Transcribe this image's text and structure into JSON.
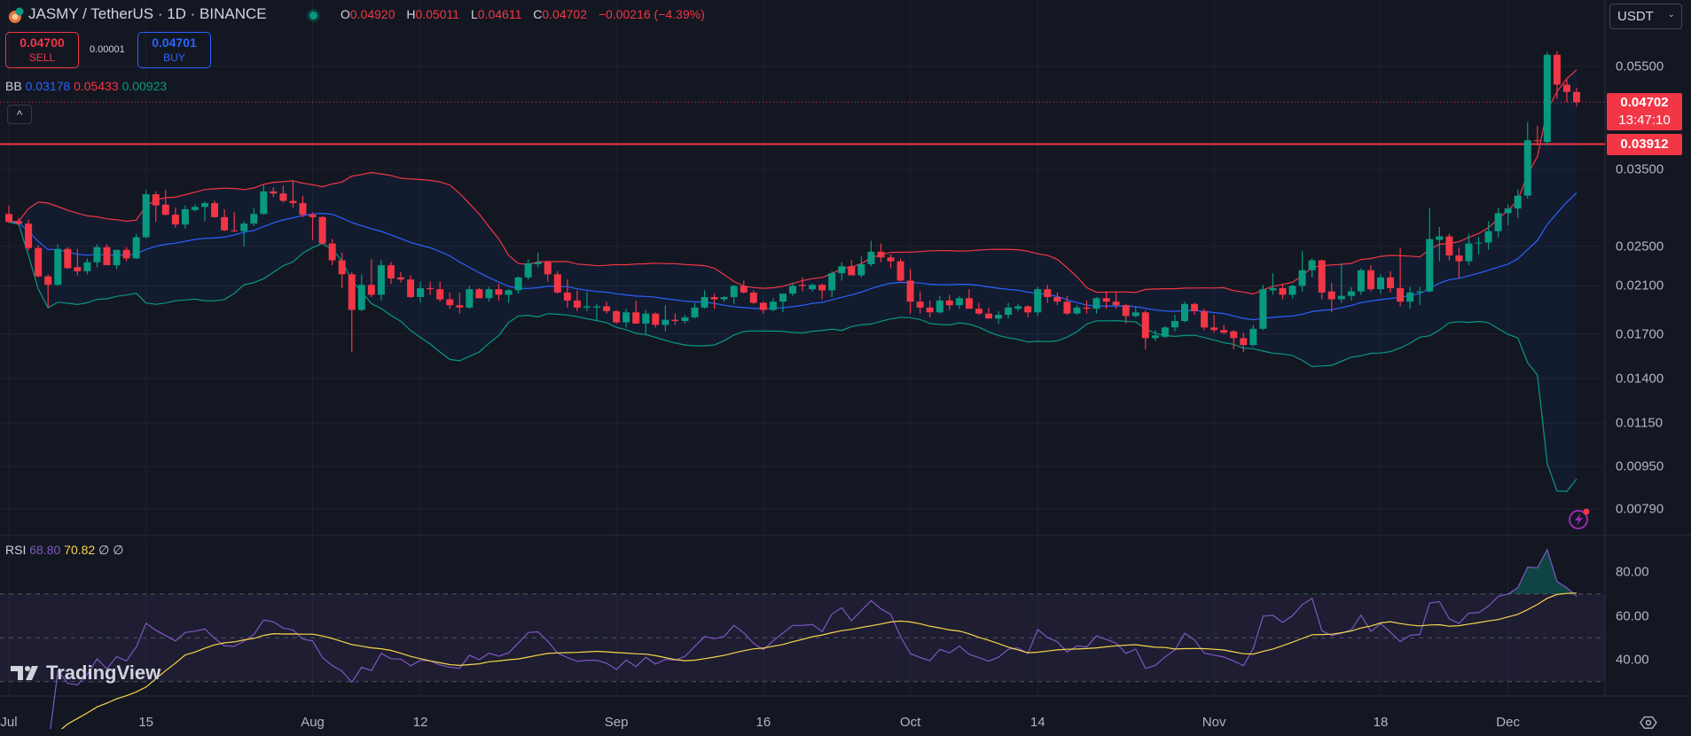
{
  "header": {
    "symbol_title": "JASMY / TetherUS · 1D · BINANCE",
    "ohlc": [
      {
        "key": "O",
        "value": "0.04920"
      },
      {
        "key": "H",
        "value": "0.05011"
      },
      {
        "key": "L",
        "value": "0.04611"
      },
      {
        "key": "C",
        "value": "0.04702"
      }
    ],
    "change": "−0.00216 (−4.39%)",
    "status_color": "#089981"
  },
  "trade": {
    "sell_price": "0.04700",
    "sell_label": "SELL",
    "spread": "0.00001",
    "buy_price": "0.04701",
    "buy_label": "BUY"
  },
  "indicators": {
    "bb": {
      "label": "BB",
      "basis": "0.03178",
      "upper": "0.05433",
      "lower": "0.00923"
    },
    "rsi": {
      "label": "RSI",
      "value": "68.80",
      "ma": "70.82",
      "extra1": "∅",
      "extra2": "∅"
    }
  },
  "collapse_icon": "^",
  "currency": "USDT",
  "price_labels": {
    "last": "0.04702",
    "countdown": "13:47:10",
    "line": "0.03912"
  },
  "branding": "TradingView",
  "colors": {
    "up": "#089981",
    "down": "#f23645",
    "bb_basis": "#2962ff",
    "bb_upper": "#f23645",
    "bb_lower": "#089981",
    "rsi": "#7e57c2",
    "rsi_ma": "#f7d54a"
  },
  "chart_data": {
    "type": "candlestick",
    "title": "JASMY / TetherUS · 1D · BINANCE",
    "y_scale": "log",
    "ylim": [
      0.0072,
      0.062
    ],
    "grid": true,
    "y_ticks": [
      "0.05500",
      "0.03500",
      "0.02500",
      "0.02100",
      "0.01700",
      "0.01400",
      "0.01150",
      "0.00950",
      "0.00790"
    ],
    "x_ticks": [
      {
        "label": "Jul",
        "x": "Jul 1"
      },
      {
        "label": "15",
        "x": "Jul 15"
      },
      {
        "label": "Aug",
        "x": "Aug 1"
      },
      {
        "label": "12",
        "x": "Aug 12"
      },
      {
        "label": "Sep",
        "x": "Sep 1"
      },
      {
        "label": "16",
        "x": "Sep 16"
      },
      {
        "label": "Oct",
        "x": "Oct 1"
      },
      {
        "label": "14",
        "x": "Oct 14"
      },
      {
        "label": "Nov",
        "x": "Nov 1"
      },
      {
        "label": "18",
        "x": "Nov 18"
      },
      {
        "label": "Dec",
        "x": "Dec 1"
      }
    ],
    "horizontal_line": 0.03912,
    "last_price": 0.04702,
    "bollinger": {
      "length": 20,
      "mult": 2
    },
    "rsi_panel": {
      "length": 14,
      "ma_length": 14,
      "ticks": [
        "80.00",
        "60.00",
        "40.00"
      ],
      "bands": [
        70,
        50,
        30
      ]
    },
    "candles_format": [
      "date",
      "open",
      "high",
      "low",
      "close"
    ],
    "candles": [
      [
        "Jul 1",
        0.0288,
        0.0299,
        0.0277,
        0.0278
      ],
      [
        "Jul 2",
        0.0279,
        0.0283,
        0.0274,
        0.0276
      ],
      [
        "Jul 3",
        0.0276,
        0.0281,
        0.0245,
        0.0248
      ],
      [
        "Jul 4",
        0.0248,
        0.0251,
        0.0218,
        0.0219
      ],
      [
        "Jul 5",
        0.0219,
        0.0221,
        0.0191,
        0.0211
      ],
      [
        "Jul 6",
        0.0211,
        0.0252,
        0.021,
        0.0247
      ],
      [
        "Jul 7",
        0.0247,
        0.0249,
        0.0226,
        0.0227
      ],
      [
        "Jul 8",
        0.0228,
        0.0247,
        0.022,
        0.0224
      ],
      [
        "Jul 9",
        0.0224,
        0.0237,
        0.0221,
        0.0233
      ],
      [
        "Jul 10",
        0.0233,
        0.0252,
        0.0228,
        0.0249
      ],
      [
        "Jul 11",
        0.0249,
        0.0252,
        0.023,
        0.023
      ],
      [
        "Jul 12",
        0.023,
        0.0246,
        0.0226,
        0.0246
      ],
      [
        "Jul 13",
        0.0246,
        0.0249,
        0.0234,
        0.0237
      ],
      [
        "Jul 14",
        0.0237,
        0.0264,
        0.0236,
        0.026
      ],
      [
        "Jul 15",
        0.026,
        0.032,
        0.0259,
        0.0314
      ],
      [
        "Jul 16",
        0.0314,
        0.0318,
        0.0278,
        0.0299
      ],
      [
        "Jul 17",
        0.03,
        0.032,
        0.0286,
        0.0287
      ],
      [
        "Jul 18",
        0.0287,
        0.0296,
        0.0271,
        0.0275
      ],
      [
        "Jul 19",
        0.0275,
        0.0299,
        0.027,
        0.0294
      ],
      [
        "Jul 20",
        0.0293,
        0.03,
        0.0291,
        0.0297
      ],
      [
        "Jul 21",
        0.0297,
        0.0304,
        0.0279,
        0.0302
      ],
      [
        "Jul 22",
        0.0302,
        0.0305,
        0.0283,
        0.0284
      ],
      [
        "Jul 23",
        0.0284,
        0.0294,
        0.0267,
        0.0268
      ],
      [
        "Jul 24",
        0.0268,
        0.029,
        0.0266,
        0.0267
      ],
      [
        "Jul 25",
        0.0267,
        0.0279,
        0.025,
        0.0276
      ],
      [
        "Jul 26",
        0.0276,
        0.0296,
        0.0273,
        0.0288
      ],
      [
        "Jul 27",
        0.0288,
        0.0327,
        0.0287,
        0.0318
      ],
      [
        "Jul 28",
        0.0318,
        0.0324,
        0.031,
        0.0315
      ],
      [
        "Jul 29",
        0.0315,
        0.0326,
        0.0303,
        0.0305
      ],
      [
        "Jul 30",
        0.0305,
        0.0333,
        0.0296,
        0.0302
      ],
      [
        "Jul 31",
        0.0302,
        0.0312,
        0.0284,
        0.0287
      ],
      [
        "Aug 1",
        0.0287,
        0.029,
        0.0257,
        0.0284
      ],
      [
        "Aug 2",
        0.0284,
        0.0285,
        0.0252,
        0.0253
      ],
      [
        "Aug 3",
        0.0253,
        0.0258,
        0.023,
        0.0235
      ],
      [
        "Aug 4",
        0.0235,
        0.0243,
        0.0208,
        0.0221
      ],
      [
        "Aug 5",
        0.0221,
        0.0223,
        0.0157,
        0.0189
      ],
      [
        "Aug 6",
        0.0189,
        0.0221,
        0.0188,
        0.0211
      ],
      [
        "Aug 7",
        0.0211,
        0.0236,
        0.02,
        0.0202
      ],
      [
        "Aug 8",
        0.0202,
        0.0235,
        0.0197,
        0.023
      ],
      [
        "Aug 9",
        0.023,
        0.0233,
        0.0212,
        0.0217
      ],
      [
        "Aug 10",
        0.0218,
        0.0223,
        0.0213,
        0.0216
      ],
      [
        "Aug 11",
        0.0216,
        0.022,
        0.0199,
        0.02
      ],
      [
        "Aug 12",
        0.02,
        0.0214,
        0.0195,
        0.0208
      ],
      [
        "Aug 13",
        0.0208,
        0.0214,
        0.0202,
        0.0207
      ],
      [
        "Aug 14",
        0.0207,
        0.0214,
        0.0196,
        0.0198
      ],
      [
        "Aug 15",
        0.0198,
        0.0204,
        0.019,
        0.0193
      ],
      [
        "Aug 16",
        0.0193,
        0.0204,
        0.0186,
        0.0191
      ],
      [
        "Aug 17",
        0.0191,
        0.021,
        0.019,
        0.0207
      ],
      [
        "Aug 18",
        0.0207,
        0.0208,
        0.0199,
        0.0199
      ],
      [
        "Aug 19",
        0.0199,
        0.0209,
        0.0196,
        0.0207
      ],
      [
        "Aug 20",
        0.0207,
        0.0212,
        0.0197,
        0.0202
      ],
      [
        "Aug 21",
        0.0202,
        0.0207,
        0.0195,
        0.0206
      ],
      [
        "Aug 22",
        0.0206,
        0.0219,
        0.0203,
        0.0218
      ],
      [
        "Aug 23",
        0.0218,
        0.0236,
        0.0216,
        0.0232
      ],
      [
        "Aug 24",
        0.0231,
        0.0243,
        0.0228,
        0.0233
      ],
      [
        "Aug 25",
        0.0233,
        0.0234,
        0.0214,
        0.0221
      ],
      [
        "Aug 26",
        0.0221,
        0.0224,
        0.0203,
        0.0204
      ],
      [
        "Aug 27",
        0.0204,
        0.0216,
        0.0191,
        0.0197
      ],
      [
        "Aug 28",
        0.0197,
        0.0206,
        0.0188,
        0.0191
      ],
      [
        "Aug 29",
        0.0191,
        0.0205,
        0.0188,
        0.0192
      ],
      [
        "Aug 30",
        0.0191,
        0.0194,
        0.018,
        0.0192
      ],
      [
        "Aug 31",
        0.0192,
        0.0196,
        0.0186,
        0.0188
      ],
      [
        "Sep 1",
        0.0188,
        0.0189,
        0.0178,
        0.0179
      ],
      [
        "Sep 2",
        0.0179,
        0.019,
        0.0175,
        0.0187
      ],
      [
        "Sep 3",
        0.0187,
        0.0197,
        0.0178,
        0.0178
      ],
      [
        "Sep 4",
        0.0178,
        0.0189,
        0.0169,
        0.0186
      ],
      [
        "Sep 5",
        0.0186,
        0.0187,
        0.0175,
        0.0177
      ],
      [
        "Sep 6",
        0.0177,
        0.0193,
        0.0172,
        0.0181
      ],
      [
        "Sep 7",
        0.0181,
        0.0186,
        0.0177,
        0.018
      ],
      [
        "Sep 8",
        0.018,
        0.0185,
        0.0178,
        0.0183
      ],
      [
        "Sep 9",
        0.0183,
        0.0195,
        0.0182,
        0.0191
      ],
      [
        "Sep 10",
        0.0191,
        0.0206,
        0.019,
        0.02
      ],
      [
        "Sep 11",
        0.02,
        0.0203,
        0.019,
        0.0198
      ],
      [
        "Sep 12",
        0.0198,
        0.0201,
        0.0196,
        0.02
      ],
      [
        "Sep 13",
        0.02,
        0.0211,
        0.0194,
        0.021
      ],
      [
        "Sep 14",
        0.021,
        0.0215,
        0.0203,
        0.0204
      ],
      [
        "Sep 15",
        0.0204,
        0.0206,
        0.0194,
        0.0195
      ],
      [
        "Sep 16",
        0.0195,
        0.0196,
        0.0186,
        0.0189
      ],
      [
        "Sep 17",
        0.0189,
        0.0199,
        0.0188,
        0.0196
      ],
      [
        "Sep 18",
        0.0196,
        0.0203,
        0.0187,
        0.0203
      ],
      [
        "Sep 19",
        0.0203,
        0.0213,
        0.0201,
        0.021
      ],
      [
        "Sep 20",
        0.0211,
        0.0218,
        0.0205,
        0.021
      ],
      [
        "Sep 21",
        0.0207,
        0.0212,
        0.0205,
        0.0211
      ],
      [
        "Sep 22",
        0.0211,
        0.0212,
        0.0198,
        0.0206
      ],
      [
        "Sep 23",
        0.0206,
        0.0224,
        0.02,
        0.0222
      ],
      [
        "Sep 24",
        0.0222,
        0.0233,
        0.0215,
        0.0229
      ],
      [
        "Sep 25",
        0.0229,
        0.0235,
        0.022,
        0.022
      ],
      [
        "Sep 26",
        0.022,
        0.0239,
        0.0218,
        0.0231
      ],
      [
        "Sep 27",
        0.0231,
        0.0256,
        0.0229,
        0.0244
      ],
      [
        "Sep 28",
        0.0244,
        0.0253,
        0.0233,
        0.0238
      ],
      [
        "Sep 29",
        0.0238,
        0.0241,
        0.0227,
        0.0234
      ],
      [
        "Sep 30",
        0.0234,
        0.0237,
        0.0214,
        0.0215
      ],
      [
        "Oct 1",
        0.0215,
        0.0226,
        0.0186,
        0.0196
      ],
      [
        "Oct 2",
        0.0196,
        0.0205,
        0.0186,
        0.0191
      ],
      [
        "Oct 3",
        0.0191,
        0.0197,
        0.0183,
        0.0187
      ],
      [
        "Oct 4",
        0.0187,
        0.0201,
        0.0186,
        0.0197
      ],
      [
        "Oct 5",
        0.0197,
        0.0202,
        0.0189,
        0.0193
      ],
      [
        "Oct 6",
        0.0193,
        0.0201,
        0.019,
        0.0199
      ],
      [
        "Oct 7",
        0.0199,
        0.0207,
        0.0191,
        0.019
      ],
      [
        "Oct 8",
        0.019,
        0.0195,
        0.0185,
        0.0186
      ],
      [
        "Oct 9",
        0.0186,
        0.0191,
        0.0182,
        0.0182
      ],
      [
        "Oct 10",
        0.0182,
        0.0188,
        0.0178,
        0.0185
      ],
      [
        "Oct 11",
        0.0185,
        0.0195,
        0.0182,
        0.0191
      ],
      [
        "Oct 12",
        0.019,
        0.0194,
        0.0188,
        0.0192
      ],
      [
        "Oct 13",
        0.0192,
        0.0193,
        0.0183,
        0.0187
      ],
      [
        "Oct 14",
        0.0187,
        0.0209,
        0.0184,
        0.0207
      ],
      [
        "Oct 15",
        0.0207,
        0.0211,
        0.0195,
        0.02
      ],
      [
        "Oct 16",
        0.02,
        0.0204,
        0.0193,
        0.0196
      ],
      [
        "Oct 17",
        0.0196,
        0.0201,
        0.0185,
        0.0186
      ],
      [
        "Oct 18",
        0.0186,
        0.0193,
        0.0185,
        0.0191
      ],
      [
        "Oct 19",
        0.0191,
        0.0197,
        0.0186,
        0.019
      ],
      [
        "Oct 20",
        0.019,
        0.02,
        0.0186,
        0.0199
      ],
      [
        "Oct 21",
        0.0199,
        0.0205,
        0.019,
        0.0196
      ],
      [
        "Oct 22",
        0.0196,
        0.0205,
        0.019,
        0.0193
      ],
      [
        "Oct 23",
        0.0193,
        0.0194,
        0.0178,
        0.0184
      ],
      [
        "Oct 24",
        0.0184,
        0.0192,
        0.0183,
        0.0187
      ],
      [
        "Oct 25",
        0.0187,
        0.0189,
        0.0159,
        0.0167
      ],
      [
        "Oct 26",
        0.0167,
        0.0173,
        0.0165,
        0.0169
      ],
      [
        "Oct 27",
        0.0168,
        0.0176,
        0.0167,
        0.0175
      ],
      [
        "Oct 28",
        0.0175,
        0.0185,
        0.0172,
        0.018
      ],
      [
        "Oct 29",
        0.018,
        0.0196,
        0.0179,
        0.0194
      ],
      [
        "Oct 30",
        0.0194,
        0.0195,
        0.0185,
        0.0188
      ],
      [
        "Oct 31",
        0.0188,
        0.019,
        0.0173,
        0.0175
      ],
      [
        "Nov 1",
        0.0175,
        0.0185,
        0.0171,
        0.0173
      ],
      [
        "Nov 2",
        0.0173,
        0.0177,
        0.017,
        0.0171
      ],
      [
        "Nov 3",
        0.0172,
        0.0173,
        0.0159,
        0.0167
      ],
      [
        "Nov 4",
        0.0167,
        0.0171,
        0.0157,
        0.0162
      ],
      [
        "Nov 5",
        0.0162,
        0.0177,
        0.0161,
        0.0174
      ],
      [
        "Nov 6",
        0.0174,
        0.0211,
        0.0173,
        0.0207
      ],
      [
        "Nov 7",
        0.0206,
        0.0222,
        0.0202,
        0.0208
      ],
      [
        "Nov 8",
        0.0208,
        0.0212,
        0.0198,
        0.0202
      ],
      [
        "Nov 9",
        0.0202,
        0.0211,
        0.0199,
        0.021
      ],
      [
        "Nov 10",
        0.021,
        0.0245,
        0.0205,
        0.0225
      ],
      [
        "Nov 11",
        0.0225,
        0.0237,
        0.0218,
        0.0235
      ],
      [
        "Nov 12",
        0.0235,
        0.0236,
        0.0198,
        0.0204
      ],
      [
        "Nov 13",
        0.0205,
        0.0213,
        0.0187,
        0.0198
      ],
      [
        "Nov 14",
        0.0198,
        0.0232,
        0.0195,
        0.0201
      ],
      [
        "Nov 15",
        0.0201,
        0.0209,
        0.0197,
        0.0205
      ],
      [
        "Nov 16",
        0.0205,
        0.0227,
        0.0202,
        0.0225
      ],
      [
        "Nov 17",
        0.0225,
        0.023,
        0.0205,
        0.0207
      ],
      [
        "Nov 18",
        0.0207,
        0.0221,
        0.0203,
        0.0218
      ],
      [
        "Nov 19",
        0.0218,
        0.0224,
        0.0204,
        0.0208
      ],
      [
        "Nov 20",
        0.0208,
        0.0248,
        0.0192,
        0.0196
      ],
      [
        "Nov 21",
        0.0196,
        0.0209,
        0.019,
        0.0204
      ],
      [
        "Nov 22",
        0.0204,
        0.0209,
        0.0193,
        0.0205
      ],
      [
        "Nov 23",
        0.0205,
        0.0295,
        0.0204,
        0.0258
      ],
      [
        "Nov 24",
        0.0257,
        0.0272,
        0.0234,
        0.0261
      ],
      [
        "Nov 25",
        0.0261,
        0.0264,
        0.0235,
        0.024
      ],
      [
        "Nov 26",
        0.024,
        0.0248,
        0.0217,
        0.0234
      ],
      [
        "Nov 27",
        0.0234,
        0.0264,
        0.023,
        0.0253
      ],
      [
        "Nov 28",
        0.0253,
        0.026,
        0.0241,
        0.0254
      ],
      [
        "Nov 29",
        0.0254,
        0.0279,
        0.0246,
        0.0267
      ],
      [
        "Nov 30",
        0.0267,
        0.0296,
        0.026,
        0.0289
      ],
      [
        "Dec 1",
        0.0289,
        0.03,
        0.0274,
        0.0295
      ],
      [
        "Dec 2",
        0.0295,
        0.0321,
        0.0283,
        0.0312
      ],
      [
        "Dec 3",
        0.0312,
        0.0431,
        0.0308,
        0.0398
      ],
      [
        "Dec 4",
        0.0398,
        0.0424,
        0.0389,
        0.0397
      ],
      [
        "Dec 5",
        0.0395,
        0.0586,
        0.0389,
        0.0579
      ],
      [
        "Dec 6",
        0.0579,
        0.0588,
        0.0477,
        0.0508
      ],
      [
        "Dec 7",
        0.0508,
        0.0519,
        0.047,
        0.0492
      ],
      [
        "Dec 8",
        0.0492,
        0.05011,
        0.04611,
        0.04702
      ]
    ]
  }
}
